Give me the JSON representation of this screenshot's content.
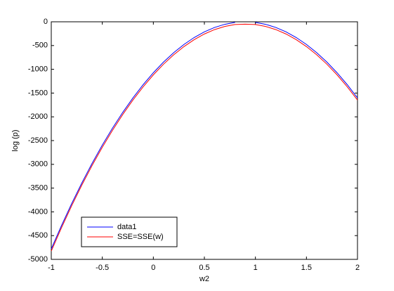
{
  "chart_data": {
    "type": "line",
    "xlabel": "w2",
    "ylabel": "log (p)",
    "x": [
      -1,
      -0.9,
      -0.8,
      -0.7,
      -0.6,
      -0.5,
      -0.4,
      -0.3,
      -0.2,
      -0.1,
      0,
      0.1,
      0.2,
      0.3,
      0.4,
      0.5,
      0.6,
      0.7,
      0.8,
      0.9,
      1,
      1.1,
      1.2,
      1.3,
      1.4,
      1.5,
      1.6,
      1.7,
      1.8,
      1.9,
      2
    ],
    "series": [
      {
        "name": "data1",
        "color": "#0000ff",
        "values": [
          -4780,
          -4290,
          -3826,
          -3389,
          -2979,
          -2595,
          -2238,
          -1907,
          -1602,
          -1324,
          -1072,
          -847,
          -649,
          -477,
          -331,
          -212,
          -119,
          -53,
          -13,
          null,
          -13,
          -53,
          -119,
          -212,
          -331,
          -477,
          -649,
          -847,
          -1072,
          -1324,
          -1602
        ]
      },
      {
        "name": "SSE=SSE(w)",
        "color": "#ff0000",
        "values": [
          -4825,
          -4335,
          -3871,
          -3434,
          -3024,
          -2640,
          -2283,
          -1952,
          -1647,
          -1369,
          -1117,
          -892,
          -694,
          -522,
          -376,
          -257,
          -164,
          -98,
          -58,
          -50,
          -58,
          -98,
          -164,
          -257,
          -376,
          -522,
          -694,
          -892,
          -1117,
          -1369,
          -1647
        ]
      }
    ],
    "xlim": [
      -1,
      2
    ],
    "ylim": [
      -5000,
      0
    ],
    "xticks": [
      -1,
      -0.5,
      0,
      0.5,
      1,
      1.5,
      2
    ],
    "yticks": [
      0,
      -500,
      -1000,
      -1500,
      -2000,
      -2500,
      -3000,
      -3500,
      -4000,
      -4500,
      -5000
    ],
    "legend": "lower left",
    "grid": false
  }
}
